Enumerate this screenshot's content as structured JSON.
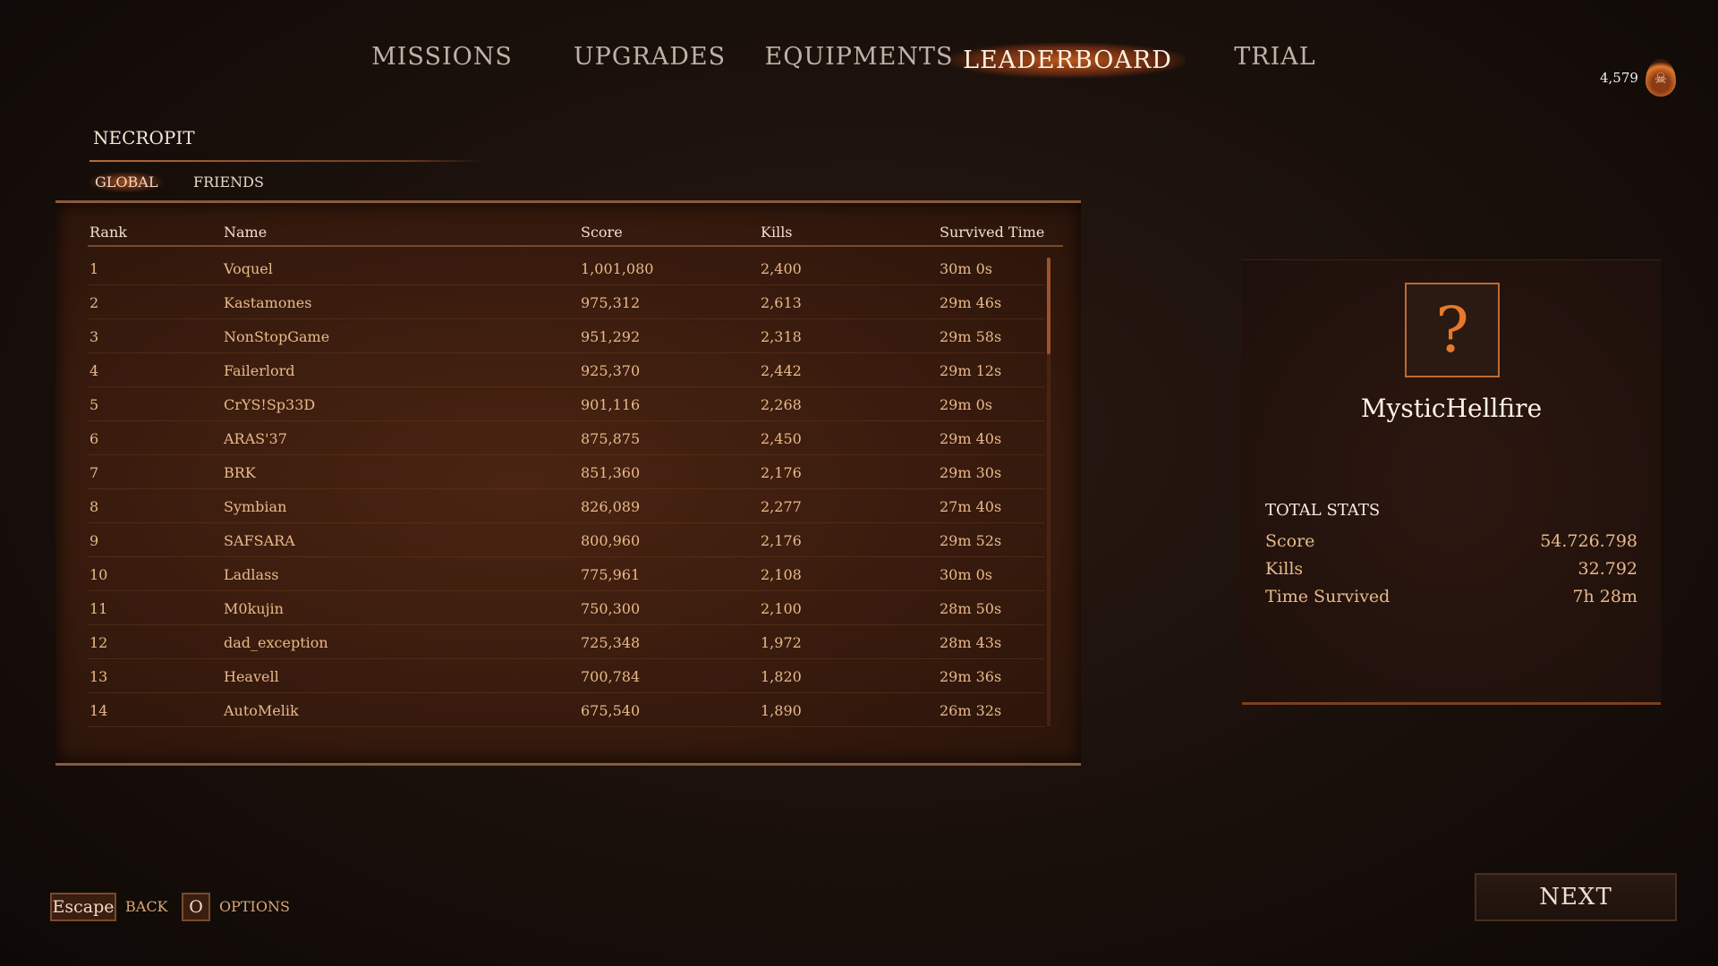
{
  "nav": {
    "tabs": [
      {
        "label": "MISSIONS"
      },
      {
        "label": "UPGRADES"
      },
      {
        "label": "EQUIPMENTS"
      },
      {
        "label": "LEADERBOARD",
        "active": true
      },
      {
        "label": "TRIAL"
      }
    ]
  },
  "currency": {
    "value": "4,579",
    "icon": "flaming-skull-icon"
  },
  "leaderboard": {
    "section": "NECROPIT",
    "subtabs": [
      {
        "label": "GLOBAL",
        "active": true
      },
      {
        "label": "FRIENDS"
      }
    ],
    "columns": [
      "Rank",
      "Name",
      "Score",
      "Kills",
      "Survived Time"
    ],
    "rows": [
      [
        "1",
        "Voquel",
        "1,001,080",
        "2,400",
        "30m 0s"
      ],
      [
        "2",
        "Kastamones",
        "975,312",
        "2,613",
        "29m 46s"
      ],
      [
        "3",
        "NonStopGame",
        "951,292",
        "2,318",
        "29m 58s"
      ],
      [
        "4",
        "Failerlord",
        "925,370",
        "2,442",
        "29m 12s"
      ],
      [
        "5",
        "CrYS!Sp33D",
        "901,116",
        "2,268",
        "29m 0s"
      ],
      [
        "6",
        "ARAS'37",
        "875,875",
        "2,450",
        "29m 40s"
      ],
      [
        "7",
        "BRK",
        "851,360",
        "2,176",
        "29m 30s"
      ],
      [
        "8",
        "Symbian",
        "826,089",
        "2,277",
        "27m 40s"
      ],
      [
        "9",
        "SAFSARA",
        "800,960",
        "2,176",
        "29m 52s"
      ],
      [
        "10",
        "Ladlass",
        "775,961",
        "2,108",
        "30m 0s"
      ],
      [
        "11",
        "M0kujin",
        "750,300",
        "2,100",
        "28m 50s"
      ],
      [
        "12",
        "dad_exception",
        "725,348",
        "1,972",
        "28m 43s"
      ],
      [
        "13",
        "Heavell",
        "700,784",
        "1,820",
        "29m 36s"
      ],
      [
        "14",
        "AutoMelik",
        "675,540",
        "1,890",
        "26m 32s"
      ]
    ]
  },
  "profile": {
    "avatar": "?",
    "name": "MysticHellfire",
    "stats_title": "TOTAL STATS",
    "stats": [
      {
        "label": "Score",
        "value": "54.726.798"
      },
      {
        "label": "Kills",
        "value": "32.792"
      },
      {
        "label": "Time Survived",
        "value": "7h 28m"
      }
    ]
  },
  "footer": {
    "back_key": "Escape",
    "back_label": "BACK",
    "options_key": "O",
    "options_label": "OPTIONS",
    "next_label": "NEXT"
  }
}
